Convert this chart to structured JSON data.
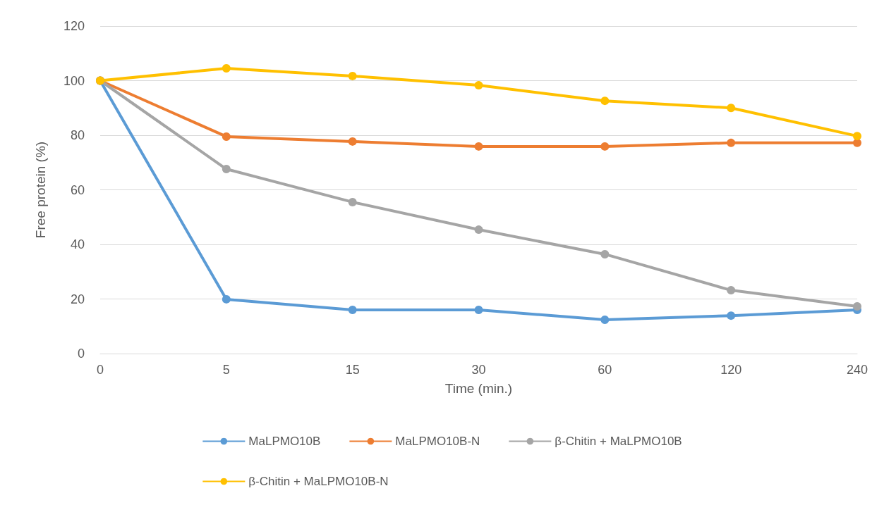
{
  "chart_data": {
    "type": "line",
    "xlabel": "Time (min.)",
    "ylabel": "Free protein (%)",
    "categories": [
      "0",
      "5",
      "15",
      "30",
      "60",
      "120",
      "240"
    ],
    "ylim": [
      0,
      120
    ],
    "yticks": [
      0,
      20,
      40,
      60,
      80,
      100,
      120
    ],
    "grid": "y",
    "legend": "bottom",
    "marker": "circle",
    "line_style": "solid",
    "series": [
      {
        "name": "MaLPMO10B",
        "color": "#5b9bd5",
        "values": [
          100,
          19.9,
          16,
          16,
          12.4,
          13.9,
          16
        ]
      },
      {
        "name": "MaLPMO10B-N",
        "color": "#ed7d31",
        "values": [
          100,
          79.5,
          77.7,
          75.9,
          75.9,
          77.2,
          77.2
        ]
      },
      {
        "name": "β-Chitin + MaLPMO10B",
        "color": "#a5a5a5",
        "values": [
          100,
          67.6,
          55.5,
          45.4,
          36.4,
          23.2,
          17.3
        ]
      },
      {
        "name": "β-Chitin + MaLPMO10B-N",
        "color": "#ffc000",
        "values": [
          100,
          104.5,
          101.7,
          98.3,
          92.6,
          90,
          79.7
        ]
      }
    ]
  }
}
